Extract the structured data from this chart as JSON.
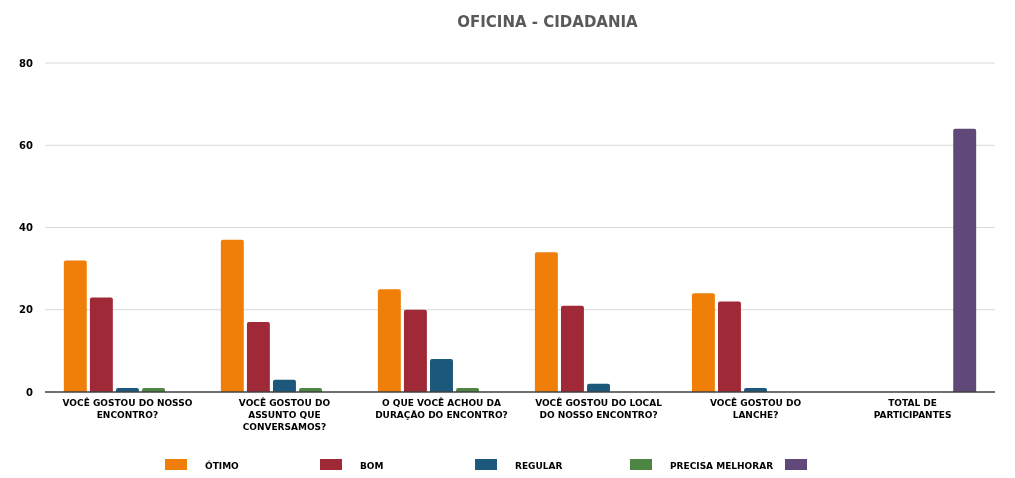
{
  "chart_data": {
    "type": "bar",
    "title": "OFICINA -  CIDADANIA",
    "categories": [
      "VOCÊ GOSTOU DO NOSSO ENCONTRO?",
      "VOCÊ GOSTOU DO ASSUNTO QUE CONVERSAMOS?",
      "O QUE VOCÊ ACHOU DA DURAÇÃO DO ENCONTRO?",
      "VOCÊ GOSTOU DO LOCAL DO NOSSO ENCONTRO?",
      "VOCÊ GOSTOU DO LANCHE?",
      "TOTAL DE PARTICIPANTES"
    ],
    "series": [
      {
        "name": "ÓTIMO",
        "color": "#f07f09",
        "values": [
          32,
          37,
          25,
          34,
          24,
          null
        ]
      },
      {
        "name": "BOM",
        "color": "#9f2936",
        "values": [
          23,
          17,
          20,
          21,
          22,
          null
        ]
      },
      {
        "name": "REGULAR",
        "color": "#1b587c",
        "values": [
          1,
          3,
          8,
          2,
          1,
          null
        ]
      },
      {
        "name": "PRECISA MELHORAR",
        "color": "#4e8542",
        "values": [
          1,
          1,
          1,
          null,
          null,
          null
        ]
      },
      {
        "color": "#604878",
        "values": [
          null,
          null,
          null,
          null,
          null,
          64
        ]
      }
    ],
    "ylim": [
      0,
      80
    ],
    "yticks": [
      0,
      20,
      40,
      60,
      80
    ],
    "grid": "y",
    "legend": "bottom"
  }
}
